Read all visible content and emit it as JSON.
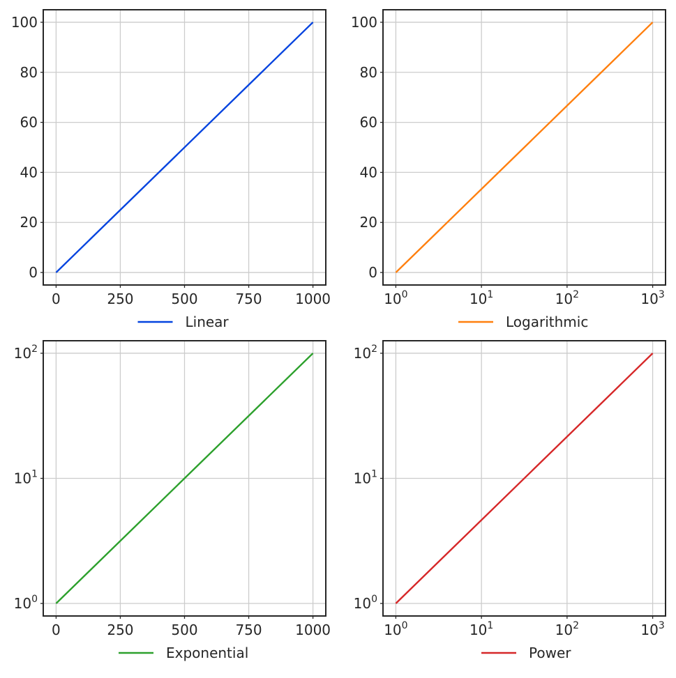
{
  "chart_data": [
    {
      "type": "line",
      "title": "",
      "xlabel": "",
      "ylabel": "",
      "xscale": "linear",
      "yscale": "linear",
      "xlim": [
        -50,
        1050
      ],
      "ylim": [
        -5,
        105
      ],
      "xticks": [
        0,
        250,
        500,
        750,
        1000
      ],
      "xtick_labels": [
        "0",
        "250",
        "500",
        "750",
        "1000"
      ],
      "yticks": [
        0,
        20,
        40,
        60,
        80,
        100
      ],
      "ytick_labels": [
        "0",
        "20",
        "40",
        "60",
        "80",
        "100"
      ],
      "grid": true,
      "legend_placement": "below plot",
      "series": [
        {
          "name": "Linear",
          "color": "#0343df",
          "x": [
            0,
            1000
          ],
          "y": [
            0,
            100
          ]
        }
      ]
    },
    {
      "type": "line",
      "title": "",
      "xlabel": "",
      "ylabel": "",
      "xscale": "log",
      "yscale": "linear",
      "xlim": [
        0.708,
        1413
      ],
      "ylim": [
        -5,
        105
      ],
      "xticks": [
        1,
        10,
        100,
        1000
      ],
      "xtick_labels": [
        {
          "base": "10",
          "exp": "0"
        },
        {
          "base": "10",
          "exp": "1"
        },
        {
          "base": "10",
          "exp": "2"
        },
        {
          "base": "10",
          "exp": "3"
        }
      ],
      "yticks": [
        0,
        20,
        40,
        60,
        80,
        100
      ],
      "ytick_labels": [
        "0",
        "20",
        "40",
        "60",
        "80",
        "100"
      ],
      "grid": true,
      "legend_placement": "below plot",
      "series": [
        {
          "name": "Logarithmic",
          "color": "#ff7f0e",
          "x": [
            1,
            1000
          ],
          "y": [
            0,
            100
          ]
        }
      ]
    },
    {
      "type": "line",
      "title": "",
      "xlabel": "",
      "ylabel": "",
      "xscale": "linear",
      "yscale": "log",
      "xlim": [
        -50,
        1050
      ],
      "ylim": [
        0.794,
        125.9
      ],
      "xticks": [
        0,
        250,
        500,
        750,
        1000
      ],
      "xtick_labels": [
        "0",
        "250",
        "500",
        "750",
        "1000"
      ],
      "yticks": [
        1,
        10,
        100
      ],
      "ytick_labels": [
        {
          "base": "10",
          "exp": "0"
        },
        {
          "base": "10",
          "exp": "1"
        },
        {
          "base": "10",
          "exp": "2"
        }
      ],
      "grid": true,
      "legend_placement": "below plot",
      "series": [
        {
          "name": "Exponential",
          "color": "#2ca02c",
          "x": [
            0,
            1000
          ],
          "y": [
            1,
            100
          ]
        }
      ]
    },
    {
      "type": "line",
      "title": "",
      "xlabel": "",
      "ylabel": "",
      "xscale": "log",
      "yscale": "log",
      "xlim": [
        0.708,
        1413
      ],
      "ylim": [
        0.794,
        125.9
      ],
      "xticks": [
        1,
        10,
        100,
        1000
      ],
      "xtick_labels": [
        {
          "base": "10",
          "exp": "0"
        },
        {
          "base": "10",
          "exp": "1"
        },
        {
          "base": "10",
          "exp": "2"
        },
        {
          "base": "10",
          "exp": "3"
        }
      ],
      "yticks": [
        1,
        10,
        100
      ],
      "ytick_labels": [
        {
          "base": "10",
          "exp": "0"
        },
        {
          "base": "10",
          "exp": "1"
        },
        {
          "base": "10",
          "exp": "2"
        }
      ],
      "grid": true,
      "legend_placement": "below plot",
      "series": [
        {
          "name": "Power",
          "color": "#d62728",
          "x": [
            1,
            1000
          ],
          "y": [
            1,
            100
          ]
        }
      ]
    }
  ]
}
